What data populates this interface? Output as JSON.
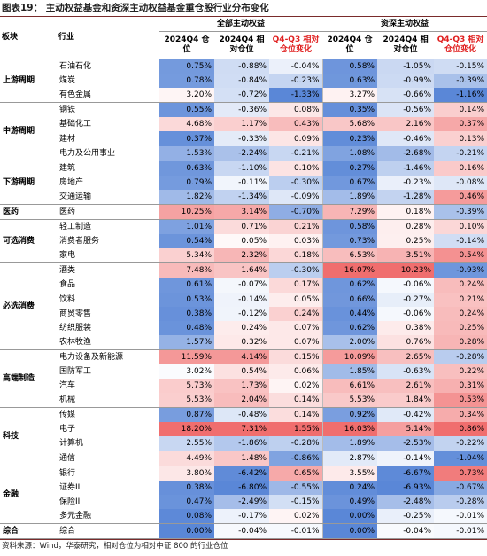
{
  "header": {
    "title": "图表19： 主动权益基金和资深主动权益基金重仓股行业分布变化"
  },
  "table": {
    "sector_header": "板块",
    "industry_header": "行业",
    "groups": [
      "全部主动权益",
      "资深主动权益"
    ],
    "columns": [
      "2024Q4 仓位",
      "2024Q4 相对仓位",
      "Q4-Q3 相对仓位变化"
    ],
    "sectors": [
      {
        "name": "上游周期",
        "rows": [
          {
            "industry": "石油石化",
            "values": [
              "0.75%",
              "-0.88%",
              "-0.04%",
              "0.58%",
              "-1.05%",
              "-0.15%"
            ]
          },
          {
            "industry": "煤炭",
            "values": [
              "0.78%",
              "-0.84%",
              "-0.23%",
              "0.63%",
              "-0.99%",
              "-0.39%"
            ]
          },
          {
            "industry": "有色金属",
            "values": [
              "3.20%",
              "-0.72%",
              "-1.33%",
              "3.27%",
              "-0.66%",
              "-1.16%"
            ]
          }
        ]
      },
      {
        "name": "中游周期",
        "rows": [
          {
            "industry": "钢铁",
            "values": [
              "0.55%",
              "-0.36%",
              "0.08%",
              "0.35%",
              "-0.56%",
              "0.14%"
            ]
          },
          {
            "industry": "基础化工",
            "values": [
              "4.68%",
              "1.17%",
              "0.43%",
              "5.68%",
              "2.16%",
              "0.37%"
            ]
          },
          {
            "industry": "建材",
            "values": [
              "0.37%",
              "-0.33%",
              "0.09%",
              "0.23%",
              "-0.46%",
              "0.13%"
            ]
          },
          {
            "industry": "电力及公用事业",
            "values": [
              "1.53%",
              "-2.24%",
              "-0.21%",
              "1.08%",
              "-2.68%",
              "-0.21%"
            ]
          }
        ]
      },
      {
        "name": "下游周期",
        "rows": [
          {
            "industry": "建筑",
            "values": [
              "0.63%",
              "-1.10%",
              "0.10%",
              "0.27%",
              "-1.46%",
              "0.16%"
            ]
          },
          {
            "industry": "房地产",
            "values": [
              "0.79%",
              "-0.11%",
              "-0.30%",
              "0.67%",
              "-0.23%",
              "-0.08%"
            ]
          },
          {
            "industry": "交通运输",
            "values": [
              "1.82%",
              "-1.34%",
              "-0.09%",
              "1.89%",
              "-1.28%",
              "0.46%"
            ]
          }
        ]
      },
      {
        "name": "医药",
        "rows": [
          {
            "industry": "医药",
            "values": [
              "10.25%",
              "3.14%",
              "-0.70%",
              "7.29%",
              "0.18%",
              "-0.39%"
            ]
          }
        ]
      },
      {
        "name": "可选消费",
        "rows": [
          {
            "industry": "轻工制造",
            "values": [
              "1.01%",
              "0.71%",
              "0.21%",
              "0.58%",
              "0.28%",
              "0.10%"
            ]
          },
          {
            "industry": "消费者服务",
            "values": [
              "0.54%",
              "0.05%",
              "0.03%",
              "0.73%",
              "0.25%",
              "-0.14%"
            ]
          },
          {
            "industry": "家电",
            "values": [
              "5.34%",
              "2.32%",
              "0.18%",
              "6.53%",
              "3.51%",
              "0.54%"
            ]
          }
        ]
      },
      {
        "name": "必选消费",
        "rows": [
          {
            "industry": "酒类",
            "values": [
              "7.48%",
              "1.64%",
              "-0.30%",
              "16.07%",
              "10.23%",
              "-0.93%"
            ]
          },
          {
            "industry": "食品",
            "values": [
              "0.61%",
              "-0.07%",
              "0.17%",
              "0.62%",
              "-0.06%",
              "0.24%"
            ]
          },
          {
            "industry": "饮料",
            "values": [
              "0.53%",
              "-0.14%",
              "0.05%",
              "0.66%",
              "-0.27%",
              "0.21%"
            ]
          },
          {
            "industry": "商贸零售",
            "values": [
              "0.38%",
              "-0.12%",
              "0.24%",
              "0.44%",
              "-0.06%",
              "0.24%"
            ]
          },
          {
            "industry": "纺织服装",
            "values": [
              "0.48%",
              "0.24%",
              "0.07%",
              "0.62%",
              "0.38%",
              "0.25%"
            ]
          },
          {
            "industry": "农林牧渔",
            "values": [
              "1.57%",
              "0.32%",
              "0.07%",
              "2.00%",
              "0.76%",
              "0.28%"
            ]
          }
        ]
      },
      {
        "name": "高端制造",
        "rows": [
          {
            "industry": "电力设备及新能源",
            "values": [
              "11.59%",
              "4.14%",
              "0.15%",
              "10.09%",
              "2.65%",
              "-0.28%"
            ]
          },
          {
            "industry": "国防军工",
            "values": [
              "3.02%",
              "0.54%",
              "0.06%",
              "1.85%",
              "-0.63%",
              "0.22%"
            ]
          },
          {
            "industry": "汽车",
            "values": [
              "5.73%",
              "1.73%",
              "0.02%",
              "6.61%",
              "2.61%",
              "0.31%"
            ]
          },
          {
            "industry": "机械",
            "values": [
              "5.53%",
              "2.04%",
              "0.14%",
              "5.53%",
              "1.84%",
              "0.53%"
            ]
          }
        ]
      },
      {
        "name": "科技",
        "rows": [
          {
            "industry": "传媒",
            "values": [
              "0.87%",
              "-0.48%",
              "0.14%",
              "0.92%",
              "-0.42%",
              "0.34%"
            ]
          },
          {
            "industry": "电子",
            "values": [
              "18.20%",
              "7.31%",
              "1.55%",
              "16.03%",
              "5.14%",
              "0.86%"
            ]
          },
          {
            "industry": "计算机",
            "values": [
              "2.55%",
              "-1.86%",
              "-0.28%",
              "1.89%",
              "-2.53%",
              "-0.22%"
            ]
          },
          {
            "industry": "通信",
            "values": [
              "4.49%",
              "1.48%",
              "-0.86%",
              "2.87%",
              "-0.14%",
              "-1.04%"
            ]
          }
        ]
      },
      {
        "name": "金融",
        "rows": [
          {
            "industry": "银行",
            "values": [
              "3.80%",
              "-6.42%",
              "0.65%",
              "3.55%",
              "-6.67%",
              "0.73%"
            ]
          },
          {
            "industry": "证券II",
            "values": [
              "0.38%",
              "-6.80%",
              "-0.55%",
              "0.24%",
              "-6.93%",
              "-0.67%"
            ]
          },
          {
            "industry": "保险II",
            "values": [
              "0.47%",
              "-2.49%",
              "-0.15%",
              "0.49%",
              "-2.48%",
              "-0.28%"
            ]
          },
          {
            "industry": "多元金融",
            "values": [
              "0.08%",
              "-0.17%",
              "0.02%",
              "0.00%",
              "-0.25%",
              "-0.01%"
            ]
          }
        ]
      },
      {
        "name": "综合",
        "rows": [
          {
            "industry": "综合",
            "values": [
              "0.00%",
              "-0.04%",
              "-0.01%",
              "0.00%",
              "-0.04%",
              "-0.01%"
            ]
          }
        ]
      }
    ]
  },
  "footer": {
    "source": "资料来源：Wind，华泰研究，相对仓位为相对中证 800 的行业仓位"
  }
}
